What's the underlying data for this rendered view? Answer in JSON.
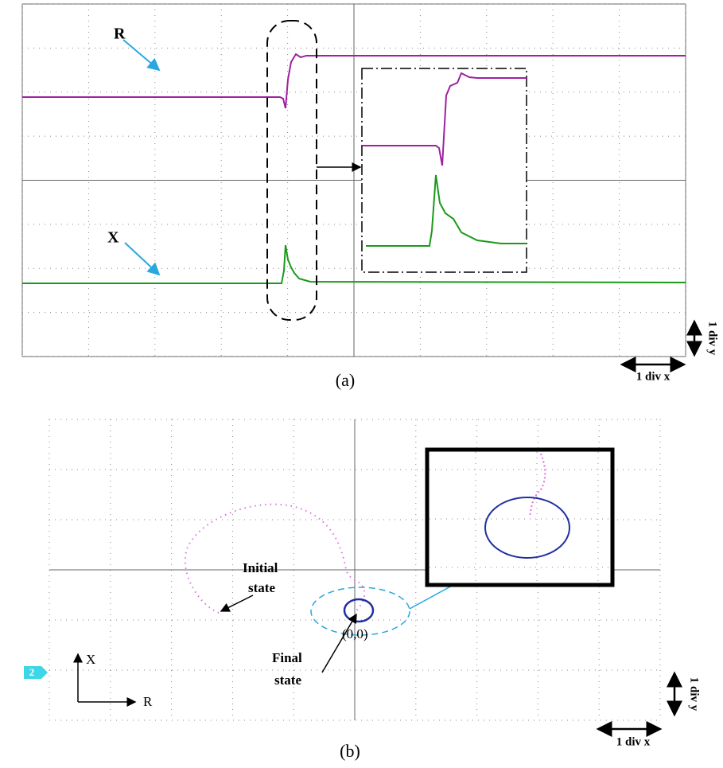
{
  "panels": [
    {
      "caption": "(a)",
      "labels": [
        "R",
        "X"
      ],
      "scale_y": "1 div y",
      "scale_x": "1 div x"
    },
    {
      "caption": "(b)",
      "channel": "2",
      "initial": [
        "Initial",
        "state"
      ],
      "final": [
        "Final",
        "state"
      ],
      "origin": "(0,0)",
      "axis_y": "X",
      "axis_x": "R",
      "scale_y": "1 div y",
      "scale_x": "1 div x"
    }
  ]
}
